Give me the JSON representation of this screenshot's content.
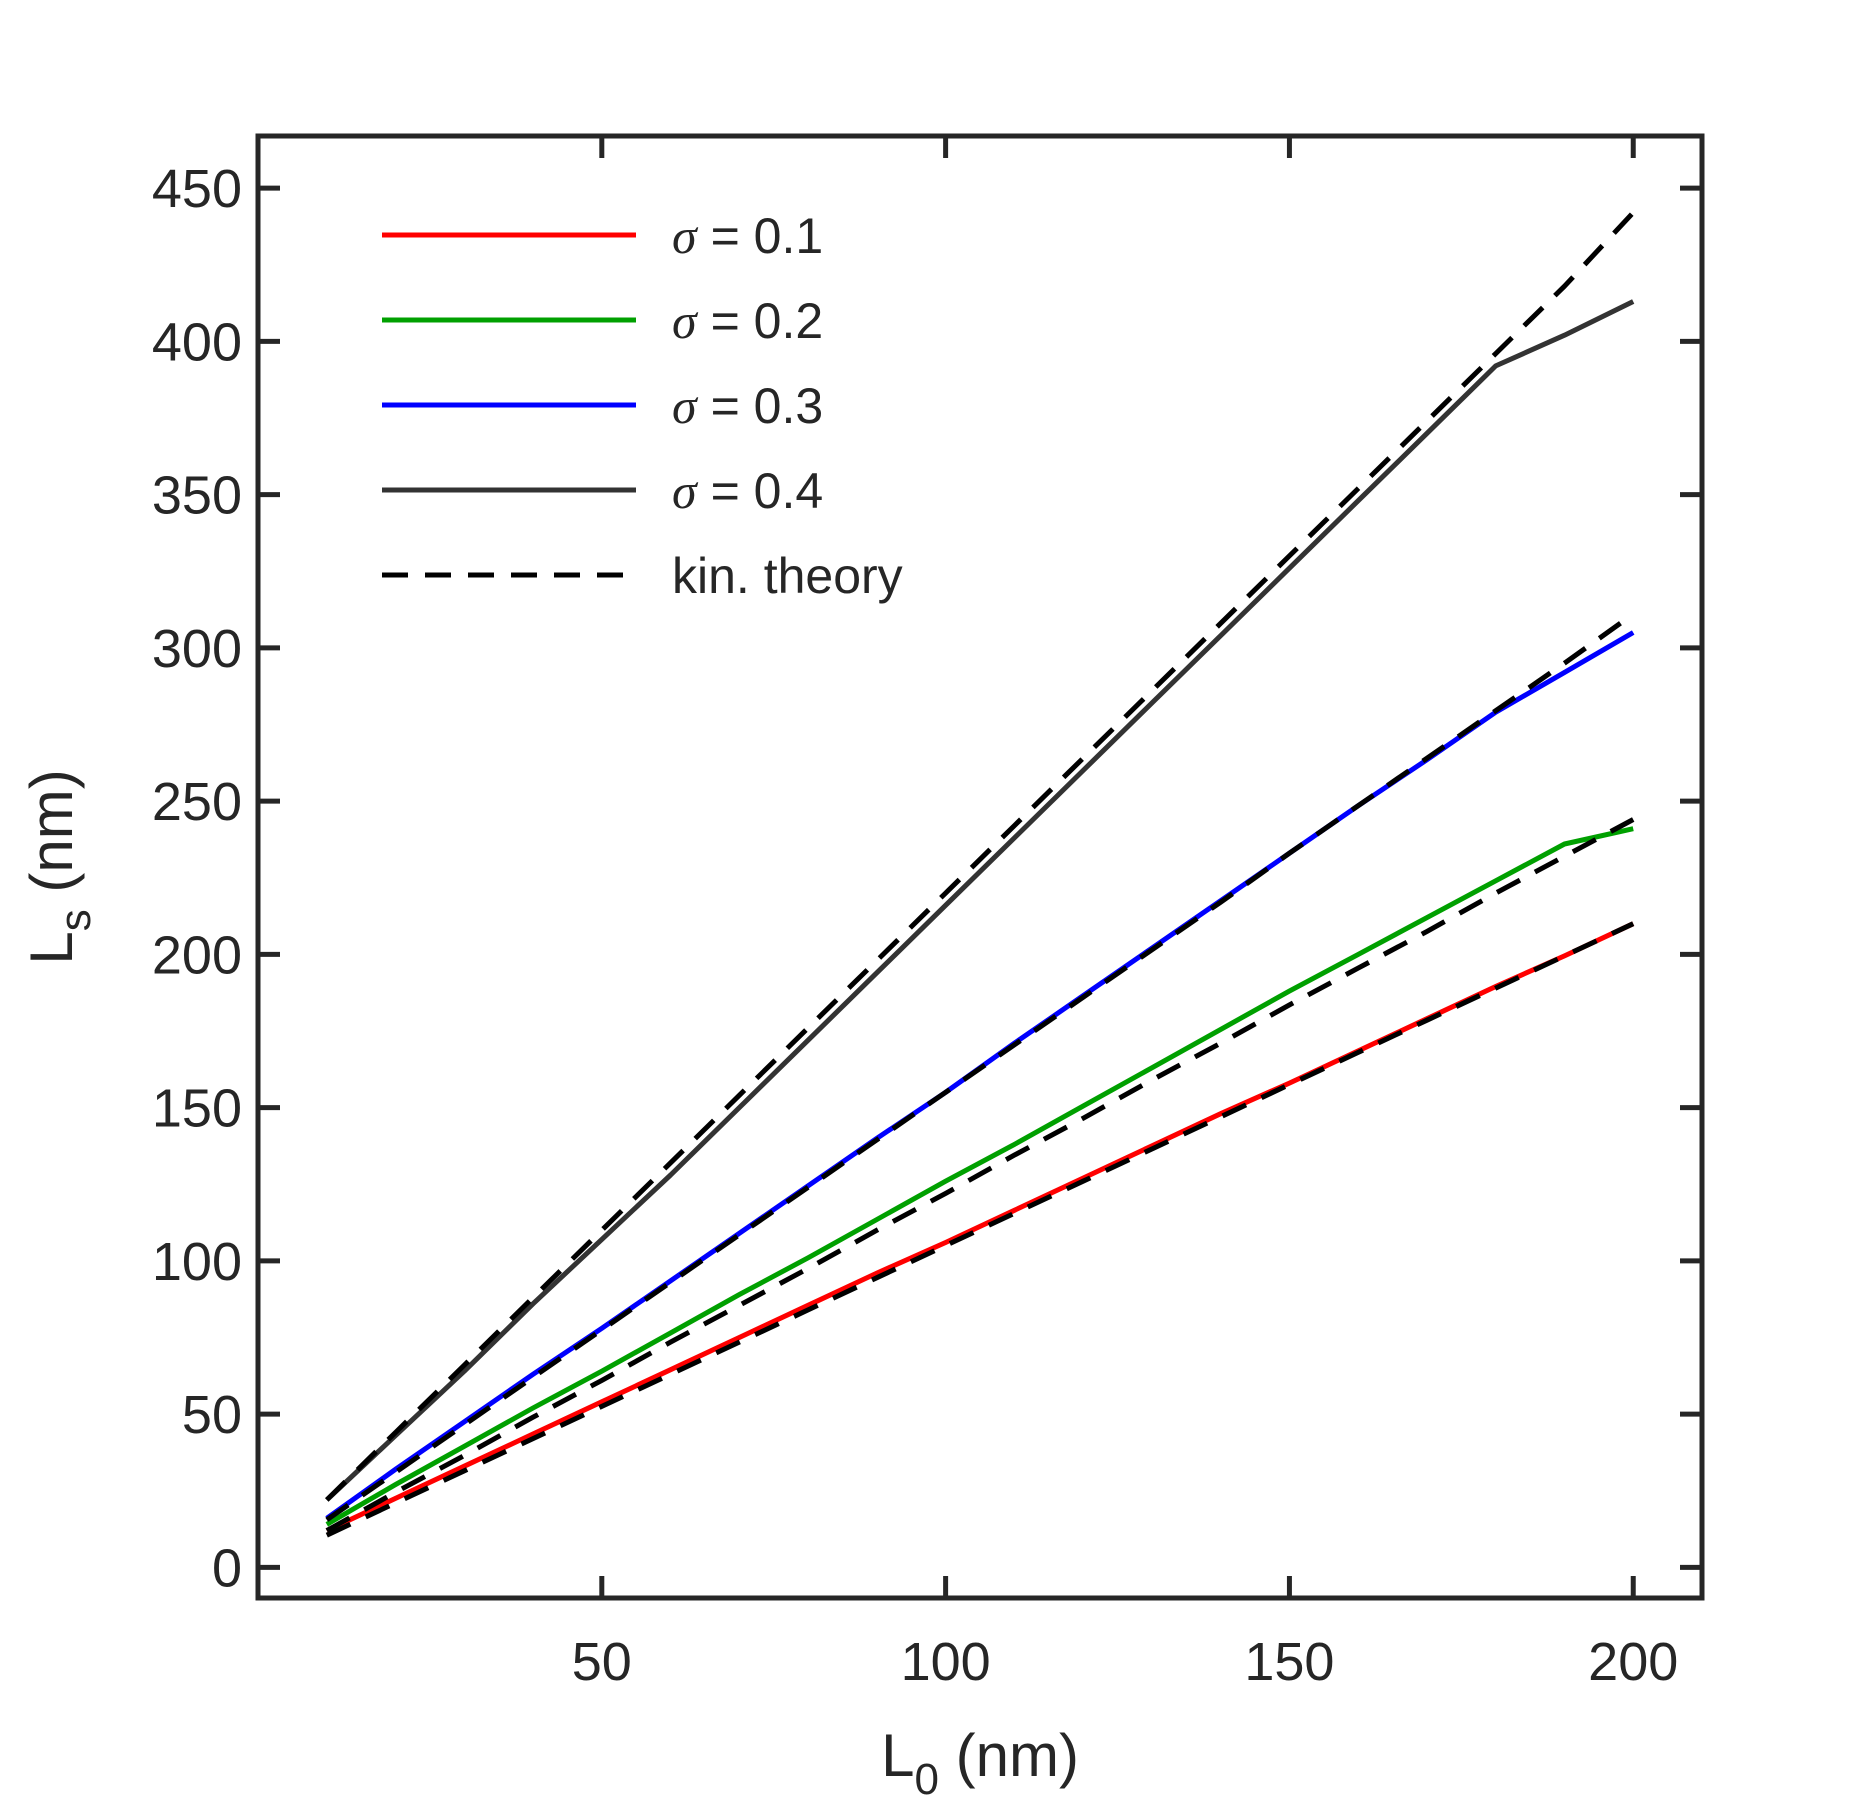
{
  "chart_data": {
    "type": "line",
    "title": "",
    "xlabel": {
      "main": "L",
      "sub": "0",
      "unit": " (nm)"
    },
    "ylabel": {
      "main": "L",
      "sub": "s",
      "unit": " (nm)"
    },
    "xlim": [
      0,
      210
    ],
    "ylim": [
      -10,
      467
    ],
    "xticks": [
      50,
      100,
      150,
      200
    ],
    "yticks": [
      0,
      50,
      100,
      150,
      200,
      250,
      300,
      350,
      400,
      450
    ],
    "grid": false,
    "legend_position": "top-left",
    "x": [
      10,
      20,
      30,
      40,
      50,
      60,
      70,
      80,
      90,
      100,
      110,
      120,
      130,
      140,
      150,
      160,
      170,
      180,
      190,
      200
    ],
    "series": [
      {
        "name": "σ = 0.1",
        "sigma_symbol": "σ",
        "sigma_text": " = 0.1",
        "color": "#ff0000",
        "style": "solid",
        "values": [
          12,
          22.5,
          33,
          43.5,
          54,
          64.5,
          75,
          85.5,
          96,
          106,
          116.5,
          127,
          137.5,
          148,
          158,
          168.5,
          179,
          189.5,
          199.5,
          210
        ]
      },
      {
        "name": "σ = 0.2",
        "sigma_symbol": "σ",
        "sigma_text": " = 0.2",
        "color": "#00a000",
        "style": "solid",
        "values": [
          14,
          27,
          39.5,
          52,
          64,
          76.5,
          89,
          101,
          113.5,
          126,
          138,
          150.5,
          163,
          175.5,
          188,
          200,
          212,
          224,
          236,
          241
        ]
      },
      {
        "name": "σ = 0.3",
        "sigma_symbol": "σ",
        "sigma_text": " = 0.3",
        "color": "#0000ff",
        "style": "solid",
        "values": [
          16,
          32,
          47.5,
          63,
          78,
          93.5,
          109,
          124.5,
          140,
          155,
          171,
          186.5,
          202,
          217.5,
          233,
          248.5,
          263.5,
          279,
          292,
          305
        ]
      },
      {
        "name": "σ = 0.4",
        "sigma_symbol": "σ",
        "sigma_text": " = 0.4",
        "color": "#333333",
        "style": "solid",
        "values": [
          22,
          43,
          64,
          86,
          107,
          128,
          150,
          172,
          194,
          216,
          238,
          260,
          282,
          304,
          326,
          348,
          370,
          392,
          402,
          413
        ]
      },
      {
        "name": "kin. theory (σ = 0.1)",
        "color": "#000000",
        "style": "dashed",
        "values": [
          10.5,
          21,
          31.5,
          42,
          52.5,
          63,
          73.5,
          84,
          94.5,
          105,
          115.5,
          126,
          136.5,
          147,
          157.5,
          168,
          178.5,
          189,
          199.5,
          210
        ]
      },
      {
        "name": "kin. theory (σ = 0.2)",
        "color": "#000000",
        "style": "dashed",
        "values": [
          12,
          24.5,
          36.5,
          49,
          61,
          73.5,
          85.5,
          97.5,
          110,
          122,
          134.5,
          146.5,
          159,
          171,
          183.5,
          195.5,
          207.5,
          220,
          232,
          244
        ]
      },
      {
        "name": "kin. theory (σ = 0.3)",
        "color": "#000000",
        "style": "dashed",
        "values": [
          15.5,
          31,
          46.5,
          62,
          77.5,
          93,
          108.5,
          124,
          139.5,
          155,
          170.5,
          186,
          201.5,
          217,
          233,
          248.5,
          264,
          279.5,
          295,
          311
        ]
      },
      {
        "name": "kin. theory (σ = 0.4)",
        "color": "#000000",
        "style": "dashed",
        "values": [
          22,
          44,
          66,
          88,
          110,
          132,
          154,
          176,
          198,
          220,
          242,
          264,
          286,
          308,
          330,
          352,
          374,
          396,
          418,
          442
        ]
      }
    ],
    "legend": [
      {
        "label": " = 0.1",
        "symbol": "σ",
        "color": "#ff0000",
        "style": "solid"
      },
      {
        "label": " = 0.2",
        "symbol": "σ",
        "color": "#00a000",
        "style": "solid"
      },
      {
        "label": " = 0.3",
        "symbol": "σ",
        "color": "#0000ff",
        "style": "solid"
      },
      {
        "label": " = 0.4",
        "symbol": "σ",
        "color": "#333333",
        "style": "solid"
      },
      {
        "label": "kin. theory",
        "symbol": "",
        "color": "#000000",
        "style": "dashed"
      }
    ]
  }
}
